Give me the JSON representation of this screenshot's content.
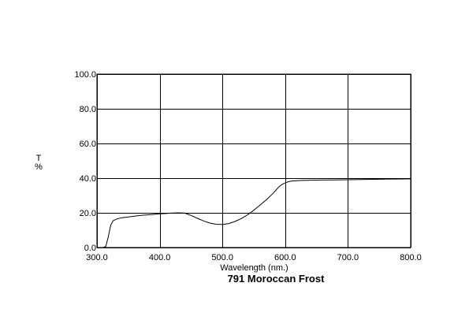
{
  "chart_data": {
    "type": "line",
    "title": "791 Moroccan Frost",
    "xlabel": "Wavelength (nm.)",
    "ylabel": "T %",
    "ylabel_parts": [
      "T",
      "%"
    ],
    "xlim": [
      300,
      800
    ],
    "ylim": [
      0,
      100
    ],
    "x_ticks": [
      300,
      400,
      500,
      600,
      700,
      800
    ],
    "y_ticks": [
      0,
      20,
      40,
      60,
      80,
      100
    ],
    "x_tick_labels": [
      "300.0",
      "400.0",
      "500.0",
      "600.0",
      "700.0",
      "800.0"
    ],
    "y_tick_labels": [
      "0.0",
      "20.0",
      "40.0",
      "60.0",
      "80.0",
      "100.0"
    ],
    "grid": true,
    "series": [
      {
        "color": "#000000",
        "x": [
          300,
          310,
          314,
          318,
          322,
          326,
          332,
          340,
          350,
          360,
          370,
          380,
          390,
          400,
          410,
          420,
          430,
          440,
          450,
          460,
          470,
          480,
          490,
          500,
          510,
          520,
          530,
          540,
          550,
          560,
          570,
          580,
          585,
          590,
          595,
          600,
          605,
          610,
          620,
          640,
          660,
          680,
          700,
          720,
          740,
          760,
          780,
          800
        ],
        "y": [
          0,
          0,
          0.5,
          6,
          13,
          15.5,
          16.5,
          17.2,
          17.6,
          18.1,
          18.5,
          18.8,
          19.1,
          19.4,
          19.6,
          19.9,
          20.0,
          19.8,
          18.5,
          16.8,
          15.3,
          14.1,
          13.4,
          13.3,
          13.8,
          15.0,
          16.7,
          18.8,
          21.5,
          24.5,
          27.5,
          31.0,
          33.0,
          35.0,
          36.3,
          37.3,
          37.9,
          38.3,
          38.6,
          38.8,
          38.9,
          39.0,
          39.1,
          39.2,
          39.3,
          39.4,
          39.5,
          39.6
        ]
      }
    ]
  }
}
